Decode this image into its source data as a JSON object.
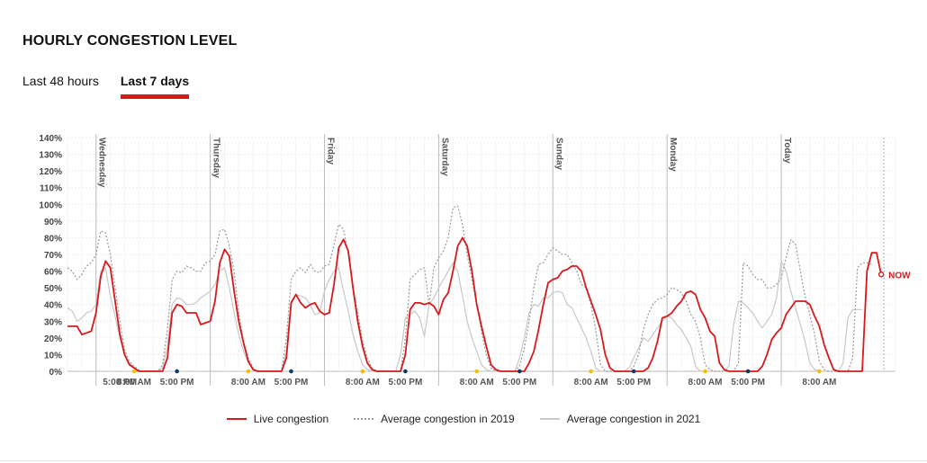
{
  "header": {
    "title": "HOURLY CONGESTION LEVEL"
  },
  "tabs": [
    {
      "label": "Last 48 hours",
      "active": false
    },
    {
      "label": "Last 7 days",
      "active": true
    }
  ],
  "colors": {
    "live": "#d7191c",
    "avg2019": "#9a9a9a",
    "avg2021": "#c8c8c8",
    "morning": "#f5c000",
    "evening": "#0f3b66"
  },
  "chart_data": {
    "type": "line",
    "ylim": [
      0,
      140
    ],
    "yticks": [
      "0%",
      "10%",
      "20%",
      "30%",
      "40%",
      "50%",
      "60%",
      "70%",
      "80%",
      "90%",
      "100%",
      "110%",
      "120%",
      "130%",
      "140%"
    ],
    "x_hours_total": 174,
    "day_labels": [
      "Wednesday",
      "Thursday",
      "Friday",
      "Saturday",
      "Sunday",
      "Monday",
      "Today"
    ],
    "day_start_hours": [
      6,
      30,
      54,
      78,
      102,
      126,
      150
    ],
    "time_labels": [
      {
        "hour": -7,
        "label": "5:00 PM"
      },
      {
        "hour": 14,
        "label": "8:00 AM"
      },
      {
        "hour": 23,
        "label": "5:00 PM"
      },
      {
        "hour": 38,
        "label": "8:00 AM"
      },
      {
        "hour": 47,
        "label": "5:00 PM"
      },
      {
        "hour": 62,
        "label": "8:00 AM"
      },
      {
        "hour": 71,
        "label": "5:00 PM"
      },
      {
        "hour": 86,
        "label": "8:00 AM"
      },
      {
        "hour": 95,
        "label": "5:00 PM"
      },
      {
        "hour": 110,
        "label": "8:00 AM"
      },
      {
        "hour": 119,
        "label": "5:00 PM"
      },
      {
        "hour": 134,
        "label": "8:00 AM"
      },
      {
        "hour": 143,
        "label": "5:00 PM"
      },
      {
        "hour": 158,
        "label": "8:00 AM"
      }
    ],
    "markers_morning": [
      14,
      38,
      62,
      86,
      110,
      134,
      158
    ],
    "markers_evening": [
      -1,
      23,
      47,
      71,
      95,
      119,
      143
    ],
    "now_label": "NOW",
    "series": [
      {
        "name": "Live congestion",
        "values": [
          27,
          27,
          27,
          22,
          23,
          24,
          35,
          57,
          66,
          62,
          42,
          22,
          10,
          4,
          2,
          0,
          0,
          0,
          0,
          0,
          0,
          8,
          35,
          40,
          39,
          35,
          35,
          35,
          28,
          29,
          30,
          42,
          65,
          73,
          69,
          48,
          30,
          17,
          6,
          1,
          0,
          0,
          0,
          0,
          0,
          0,
          8,
          41,
          46,
          41,
          38,
          40,
          41,
          36,
          34,
          35,
          52,
          74,
          79,
          72,
          50,
          30,
          15,
          5,
          1,
          0,
          0,
          0,
          0,
          0,
          0,
          10,
          37,
          41,
          41,
          40,
          41,
          39,
          34,
          43,
          47,
          60,
          75,
          80,
          75,
          60,
          40,
          27,
          15,
          4,
          1,
          0,
          0,
          0,
          0,
          0,
          0,
          5,
          12,
          25,
          40,
          53,
          55,
          56,
          60,
          61,
          63,
          63,
          60,
          50,
          42,
          34,
          25,
          10,
          2,
          0,
          0,
          0,
          0,
          0,
          0,
          0,
          2,
          8,
          18,
          32,
          33,
          35,
          39,
          42,
          47,
          48,
          46,
          37,
          32,
          24,
          21,
          5,
          1,
          0,
          0,
          0,
          0,
          0,
          0,
          0,
          3,
          10,
          19,
          23,
          26,
          34,
          38,
          42,
          42,
          42,
          40,
          33,
          27,
          16,
          8,
          1,
          0,
          0,
          0,
          0,
          0,
          0,
          60,
          71,
          71,
          58
        ]
      },
      {
        "name": "Average congestion in 2019",
        "values": [
          62,
          60,
          55,
          58,
          63,
          65,
          70,
          84,
          83,
          70,
          50,
          30,
          13,
          6,
          3,
          1,
          0,
          0,
          0,
          0,
          4,
          25,
          55,
          60,
          59,
          63,
          62,
          60,
          60,
          65,
          66,
          70,
          84,
          85,
          75,
          60,
          35,
          18,
          8,
          2,
          0,
          0,
          0,
          0,
          0,
          0,
          20,
          55,
          60,
          62,
          59,
          64,
          60,
          59,
          63,
          64,
          76,
          88,
          85,
          70,
          50,
          35,
          18,
          8,
          2,
          0,
          0,
          0,
          0,
          0,
          0,
          20,
          55,
          58,
          61,
          62,
          40,
          62,
          68,
          72,
          80,
          98,
          99,
          88,
          70,
          55,
          40,
          24,
          10,
          2,
          0,
          0,
          0,
          0,
          0,
          3,
          14,
          30,
          50,
          64,
          65,
          70,
          74,
          72,
          70,
          70,
          65,
          60,
          52,
          50,
          40,
          25,
          4,
          0,
          0,
          0,
          0,
          0,
          0,
          3,
          10,
          25,
          34,
          40,
          43,
          44,
          46,
          50,
          49,
          47,
          42,
          34,
          30,
          20,
          4,
          1,
          0,
          0,
          0,
          0,
          0,
          5,
          65,
          63,
          58,
          55,
          55,
          50,
          50,
          52,
          56,
          68,
          79,
          76,
          60,
          45,
          34,
          22,
          6,
          1,
          0,
          0,
          0,
          0,
          0,
          8,
          62,
          65,
          65,
          64
        ]
      },
      {
        "name": "Average congestion in 2021",
        "values": [
          38,
          36,
          30,
          32,
          35,
          36,
          40,
          60,
          62,
          45,
          33,
          20,
          10,
          5,
          2,
          0,
          0,
          0,
          0,
          0,
          2,
          15,
          40,
          44,
          43,
          40,
          40,
          41,
          44,
          46,
          48,
          52,
          60,
          62,
          50,
          35,
          22,
          12,
          5,
          1,
          0,
          0,
          0,
          0,
          0,
          0,
          12,
          42,
          46,
          45,
          44,
          40,
          34,
          35,
          48,
          55,
          60,
          62,
          48,
          36,
          22,
          12,
          4,
          1,
          0,
          0,
          0,
          0,
          0,
          0,
          10,
          32,
          34,
          36,
          32,
          21,
          40,
          44,
          50,
          55,
          60,
          65,
          60,
          45,
          30,
          20,
          12,
          4,
          1,
          0,
          0,
          0,
          0,
          0,
          0,
          8,
          20,
          35,
          40,
          39,
          44,
          44,
          47,
          48,
          47,
          40,
          38,
          32,
          26,
          20,
          12,
          2,
          0,
          0,
          0,
          0,
          0,
          0,
          2,
          8,
          14,
          20,
          18,
          22,
          26,
          30,
          33,
          32,
          28,
          25,
          20,
          15,
          3,
          0,
          0,
          0,
          0,
          0,
          0,
          3,
          28,
          42,
          41,
          38,
          35,
          30,
          26,
          30,
          34,
          44,
          66,
          60,
          48,
          38,
          28,
          18,
          5,
          1,
          0,
          0,
          0,
          0,
          0,
          5,
          32,
          37,
          37,
          37
        ]
      }
    ],
    "legend_position": "bottom-center",
    "grid": true
  }
}
